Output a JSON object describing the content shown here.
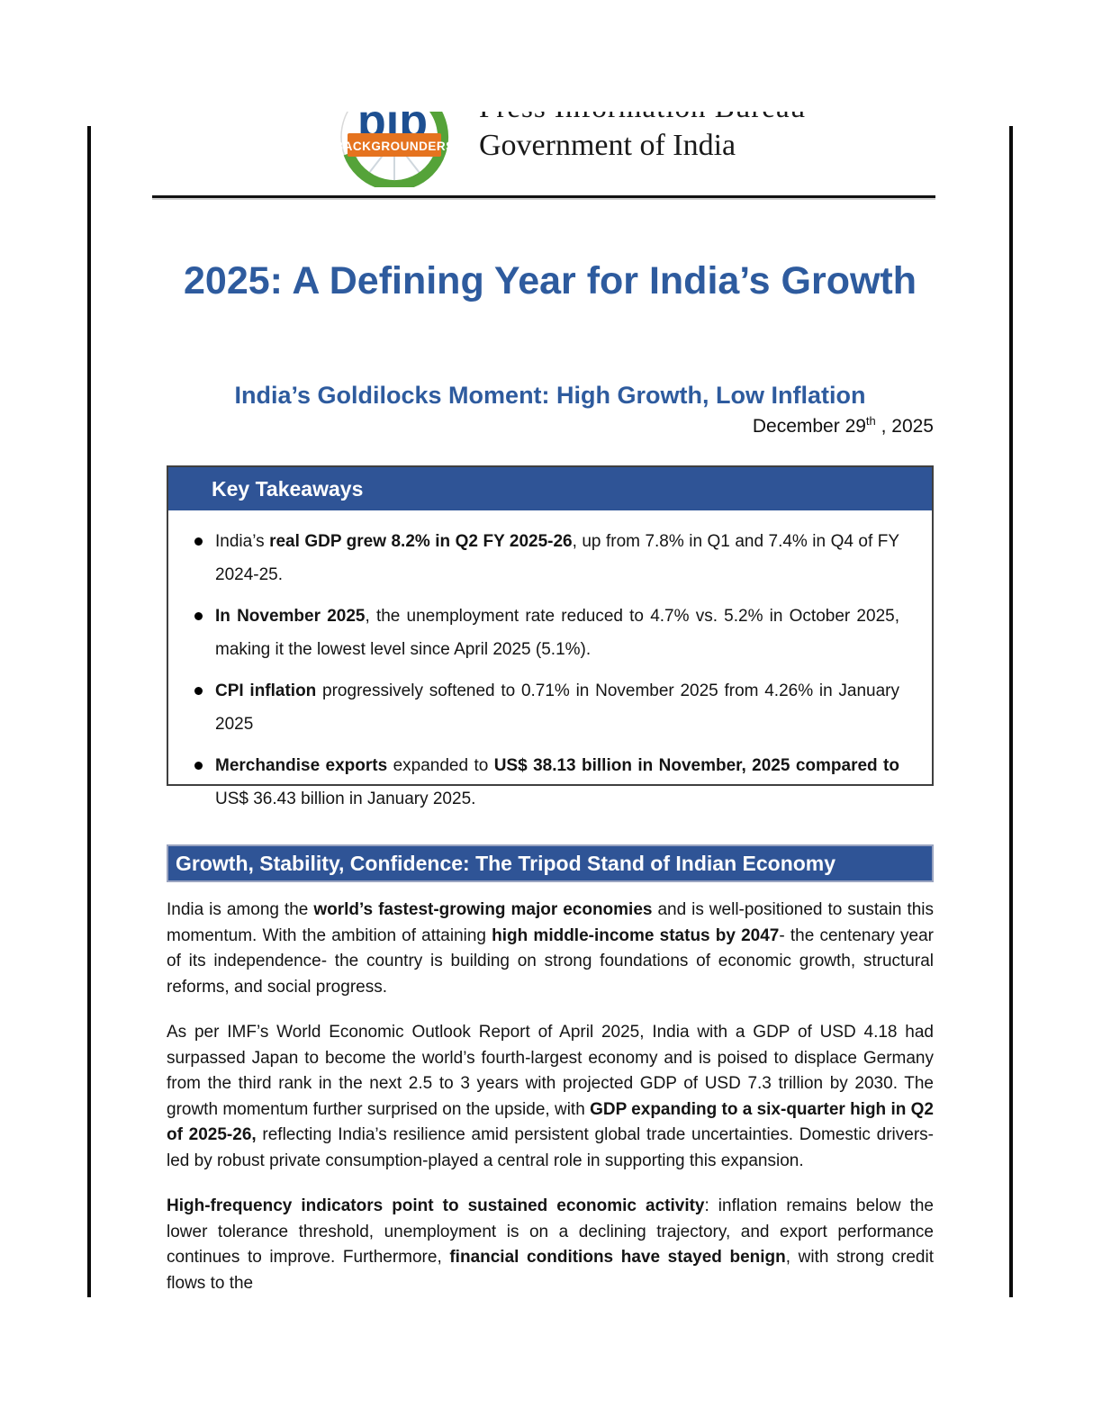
{
  "colors": {
    "accent_blue": "#2F5496",
    "title_blue": "#2E5B9E",
    "logo_orange": "#E5731F",
    "logo_green": "#55A339",
    "logo_blue": "#1D4F91"
  },
  "header": {
    "logo": {
      "acronym": "pib",
      "banner": "BACKGROUNDERS"
    },
    "org_line1": "Press Information Bureau",
    "org_line2": "Government of India"
  },
  "title": "2025: A Defining Year for India’s Growth",
  "subtitle": "India’s Goldilocks Moment: High Growth, Low Inflation",
  "date": [
    {
      "t": "December 29"
    },
    {
      "t": "th",
      "sup": true
    },
    {
      "t": " , 2025"
    }
  ],
  "takeaways": {
    "heading": "Key Takeaways",
    "bullets": [
      [
        {
          "t": "India’s "
        },
        {
          "t": "real GDP grew 8.2% in Q2 FY 2025-26",
          "b": true
        },
        {
          "t": ", up from 7.8% in Q1 and 7.4% in Q4 of FY 2024-25."
        }
      ],
      [
        {
          "t": "In November 2025",
          "b": true
        },
        {
          "t": ", the unemployment rate reduced to 4.7% vs. 5.2% in October 2025, making it the lowest level since April 2025 (5.1%)."
        }
      ],
      [
        {
          "t": "CPI inflation",
          "b": true
        },
        {
          "t": " progressively softened to 0.71% in November 2025 from 4.26% in January 2025"
        }
      ],
      [
        {
          "t": "Merchandise exports",
          "b": true
        },
        {
          "t": " expanded to "
        },
        {
          "t": "US$ 38.13 billion in November, 2025 compared to ",
          "b": true
        },
        {
          "t": "US$ 36.43 billion in January 2025."
        }
      ]
    ]
  },
  "section_heading": "Growth, Stability, Confidence: The Tripod Stand of Indian Economy",
  "paragraphs": [
    [
      {
        "t": "India is among the "
      },
      {
        "t": "world’s fastest-growing major economies",
        "b": true
      },
      {
        "t": " and is well-positioned to sustain this momentum. With the ambition of attaining "
      },
      {
        "t": "high middle-income status by 2047",
        "b": true
      },
      {
        "t": "- the centenary year of its independence- the country is building on strong foundations of economic growth, structural reforms, and social progress."
      }
    ],
    [
      {
        "t": "As per IMF’s World Economic Outlook Report of April 2025, India with a GDP of USD 4.18 had surpassed Japan to become the world’s fourth-largest economy and is poised to displace Germany from the third rank in the next 2.5 to 3 years with projected GDP of USD 7.3 trillion by 2030. The growth momentum further surprised on the upside, with "
      },
      {
        "t": "GDP expanding to a six-quarter high in Q2 of 2025-26,",
        "b": true
      },
      {
        "t": " reflecting India’s resilience amid persistent global trade uncertainties. Domestic drivers-led by robust private consumption-played a central role in supporting this expansion."
      }
    ],
    [
      {
        "t": "High-frequency indicators point to sustained economic activity",
        "b": true
      },
      {
        "t": ": inflation remains below the lower tolerance threshold, unemployment is on a declining trajectory, and export performance continues to improve. Furthermore, "
      },
      {
        "t": "financial conditions have stayed benign",
        "b": true
      },
      {
        "t": ", with strong credit flows to the"
      }
    ]
  ]
}
